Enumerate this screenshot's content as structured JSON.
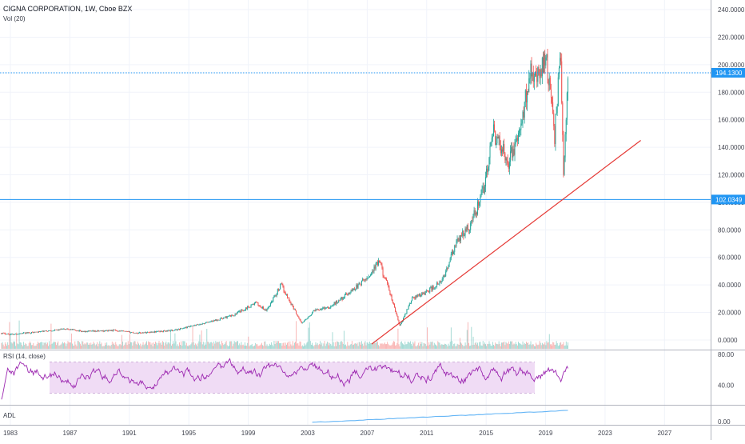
{
  "header": {
    "title": "CIGNA CORPORATION, 1W, Cboe BZX",
    "volume_label": "Vol (20)",
    "rsi_label": "RSI (14, close)",
    "adl_label": "ADL"
  },
  "colors": {
    "up": "#26a69a",
    "down": "#ef5350",
    "trendline": "#e53935",
    "hline": "#2196f3",
    "rsi_line": "#9c27b0",
    "rsi_band": "#f0dcf5",
    "adl_line": "#64b5f6",
    "grid": "#f0f3fa",
    "axis_text": "#434651"
  },
  "chart_data": {
    "type": "candlestick",
    "title": "CIGNA CORPORATION, 1W, Cboe BZX",
    "x_ticks": [
      "1983",
      "1987",
      "1991",
      "1995",
      "1999",
      "2003",
      "2007",
      "2011",
      "2015",
      "2019",
      "2023",
      "2027"
    ],
    "y_ticks": [
      "240.0000",
      "220.0000",
      "200.0000",
      "180.0000",
      "160.0000",
      "140.0000",
      "120.0000",
      "100.0000",
      "80.0000",
      "60.0000",
      "40.0000",
      "20.0000",
      "0.0000"
    ],
    "y_ticks_values": [
      240,
      220,
      200,
      180,
      160,
      140,
      120,
      100,
      80,
      60,
      40,
      20,
      0
    ],
    "ylim": [
      -7,
      247
    ],
    "xlim": [
      1982.3,
      2030.1
    ],
    "price_keyframes": [
      [
        1982.4,
        5
      ],
      [
        1983.0,
        4
      ],
      [
        1985.0,
        6
      ],
      [
        1986.8,
        8
      ],
      [
        1988.0,
        6
      ],
      [
        1990.0,
        7
      ],
      [
        1991.5,
        5
      ],
      [
        1994.0,
        7
      ],
      [
        1996.0,
        12
      ],
      [
        1998.0,
        18
      ],
      [
        1999.5,
        27
      ],
      [
        2000.2,
        21
      ],
      [
        2001.2,
        40
      ],
      [
        2002.0,
        24
      ],
      [
        2002.6,
        12
      ],
      [
        2003.5,
        22
      ],
      [
        2004.5,
        24
      ],
      [
        2005.5,
        32
      ],
      [
        2007.0,
        45
      ],
      [
        2007.8,
        57
      ],
      [
        2008.5,
        35
      ],
      [
        2009.2,
        10
      ],
      [
        2010.0,
        30
      ],
      [
        2011.0,
        35
      ],
      [
        2012.0,
        42
      ],
      [
        2013.0,
        70
      ],
      [
        2014.0,
        85
      ],
      [
        2014.8,
        108
      ],
      [
        2015.5,
        150
      ],
      [
        2016.5,
        130
      ],
      [
        2017.3,
        150
      ],
      [
        2018.0,
        200
      ],
      [
        2018.5,
        190
      ],
      [
        2019.0,
        210
      ],
      [
        2019.6,
        148
      ],
      [
        2020.0,
        210
      ],
      [
        2020.2,
        120
      ],
      [
        2020.5,
        190
      ]
    ],
    "horizontal_lines": [
      {
        "value": 194.13,
        "label": "194.1300",
        "style": "dashed"
      },
      {
        "value": 102.0349,
        "label": "102.0349",
        "style": "solid"
      }
    ],
    "trendline": {
      "from": [
        2007.3,
        -3
      ],
      "to": [
        2025.4,
        145
      ]
    },
    "volume": {
      "label": "Vol (20)"
    },
    "rsi": {
      "label": "RSI (14, close)",
      "ticks": [
        "80.00",
        "40.00"
      ],
      "ticks_values": [
        80,
        40
      ],
      "band": [
        30,
        70
      ],
      "ylim": [
        15,
        85
      ]
    },
    "adl": {
      "label": "ADL",
      "ticks": [
        "0.00"
      ],
      "ticks_values": [
        0
      ]
    }
  }
}
